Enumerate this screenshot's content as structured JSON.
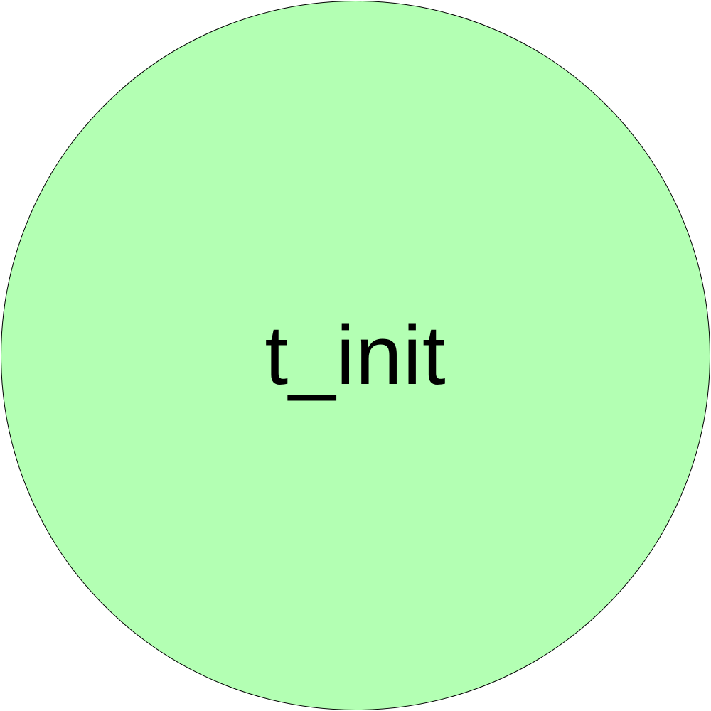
{
  "diagram": {
    "node": {
      "label": "t_init",
      "shape": "circle",
      "fill_color": "#b3ffb3",
      "stroke_color": "#000000"
    }
  }
}
